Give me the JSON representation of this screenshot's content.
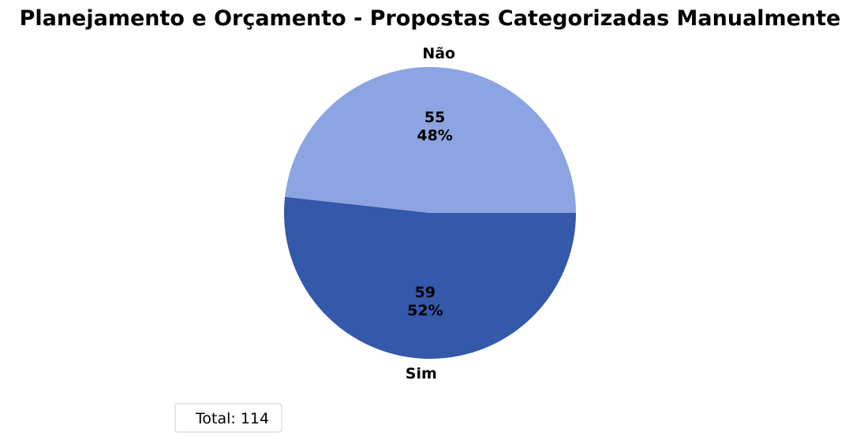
{
  "chart_data": {
    "type": "pie",
    "title": "Planejamento e Orçamento - Propostas Categorizadas Manualmente",
    "slices": [
      {
        "label": "Sim",
        "value": 59,
        "percent_label": "52%",
        "color": "#3458aa"
      },
      {
        "label": "Não",
        "value": 55,
        "percent_label": "48%",
        "color": "#8da4e2"
      }
    ],
    "start_angle_deg": 0,
    "direction": "clockwise",
    "legend": {
      "text": "Total: 114",
      "placement": "lower-left"
    }
  }
}
